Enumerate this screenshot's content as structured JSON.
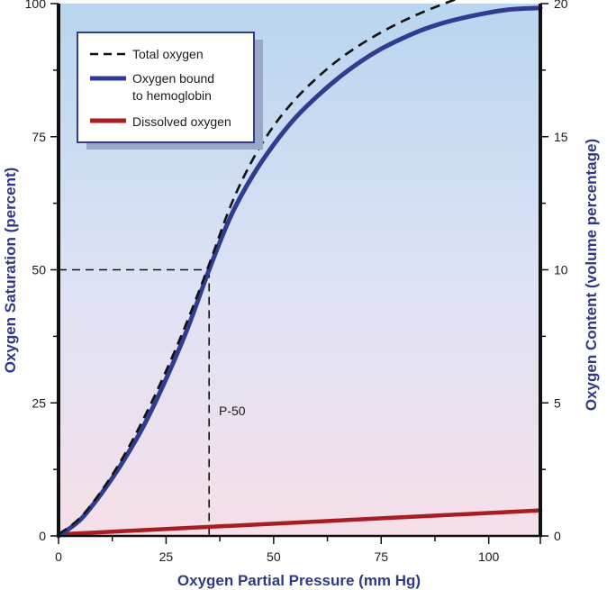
{
  "chart_data": {
    "type": "line",
    "xlabel": "Oxygen Partial Pressure (mm Hg)",
    "ylabel": "Oxygen Saturation (percent)",
    "y2label": "Oxygen Content (volume percentage)",
    "xlim": [
      0,
      112
    ],
    "ylim": [
      0,
      100
    ],
    "y2lim": [
      0,
      20
    ],
    "x_ticks": [
      0,
      25,
      50,
      75,
      100
    ],
    "y_ticks": [
      0,
      25,
      50,
      75,
      100
    ],
    "y2_ticks": [
      0,
      5,
      10,
      15,
      20
    ],
    "grid": false,
    "legend_position": "top-left",
    "colors": {
      "background_top": "#b9d5f0",
      "background_bottom": "#f6dfe8",
      "total": "#111111",
      "bound": "#2f3c8f",
      "dissolved": "#a81c24",
      "axis_title": "#2e3a86"
    },
    "series": [
      {
        "name": "Total oxygen",
        "style": "dashed",
        "x": [
          0,
          5,
          10,
          15,
          20,
          25,
          30,
          35,
          40,
          45,
          50,
          55,
          60,
          65,
          70,
          75,
          80,
          85,
          90,
          95,
          100,
          105,
          112
        ],
        "y": [
          0.3,
          3.4,
          8.5,
          14.8,
          22.4,
          31.0,
          40.5,
          51.0,
          62.0,
          70.5,
          77.0,
          82.0,
          86.0,
          89.4,
          92.2,
          94.6,
          96.7,
          98.5,
          100.1,
          101.6,
          102.9,
          104.0,
          105.0
        ]
      },
      {
        "name": "Oxygen bound to hemoglobin",
        "style": "solid",
        "x": [
          0,
          5,
          10,
          15,
          20,
          25,
          30,
          35,
          40,
          45,
          50,
          55,
          60,
          65,
          70,
          75,
          80,
          85,
          90,
          95,
          100,
          105,
          112
        ],
        "y": [
          0,
          3,
          8,
          14,
          21,
          29.5,
          39,
          50,
          60,
          67.5,
          73.5,
          78.5,
          82.5,
          86,
          89,
          91.5,
          93.5,
          95.2,
          96.5,
          97.5,
          98.3,
          98.9,
          99.2
        ]
      },
      {
        "name": "Dissolved oxygen",
        "style": "solid",
        "x": [
          0,
          112
        ],
        "y": [
          0.3,
          4.8
        ]
      }
    ],
    "legend_labels": [
      "Total oxygen",
      "Oxygen bound",
      "to hemoglobin",
      "Dissolved oxygen"
    ],
    "annotations": [
      {
        "text": "P-50",
        "x": 35,
        "y": 50
      }
    ]
  }
}
